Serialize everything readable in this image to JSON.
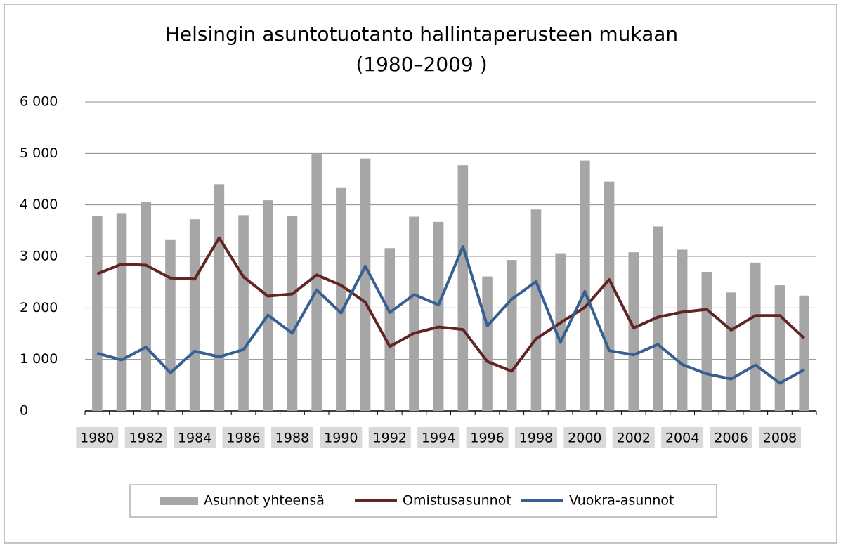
{
  "chart_data": {
    "type": "bar",
    "title": [
      "Helsingin asuntotuotanto hallintaperusteen mukaan",
      "(1980–2009 )"
    ],
    "categories": [
      "1980",
      null,
      "1982",
      null,
      "1984",
      null,
      "1986",
      null,
      "1988",
      null,
      "1990",
      null,
      "1992",
      null,
      "1994",
      null,
      "1996",
      null,
      "1998",
      null,
      "2000",
      null,
      "2002",
      null,
      "2004",
      null,
      "2006",
      null,
      "2008",
      null
    ],
    "series": [
      {
        "name": "Asunnot yhteensä",
        "type": "bar",
        "color": "#a6a6a6",
        "values": [
          3790,
          3840,
          4060,
          3330,
          3720,
          4400,
          3800,
          4090,
          3780,
          4990,
          4340,
          4900,
          3160,
          3770,
          3670,
          4770,
          2610,
          2930,
          3910,
          3060,
          4860,
          4450,
          3080,
          3580,
          3130,
          2700,
          2300,
          2880,
          2440,
          2240
        ]
      },
      {
        "name": "Omistusasunnot",
        "type": "line",
        "color": "#632523",
        "values": [
          2660,
          2850,
          2830,
          2580,
          2560,
          3360,
          2600,
          2230,
          2270,
          2640,
          2440,
          2110,
          1250,
          1510,
          1630,
          1580,
          960,
          770,
          1400,
          1710,
          2010,
          2550,
          1610,
          1820,
          1920,
          1970,
          1570,
          1850,
          1850,
          1410
        ]
      },
      {
        "name": "Vuokra-asunnot",
        "type": "line",
        "color": "#376092",
        "values": [
          1120,
          990,
          1240,
          740,
          1160,
          1050,
          1190,
          1860,
          1510,
          2350,
          1900,
          2810,
          1910,
          2260,
          2060,
          3190,
          1650,
          2170,
          2510,
          1330,
          2320,
          1170,
          1090,
          1290,
          900,
          720,
          620,
          890,
          540,
          800
        ]
      }
    ],
    "ylim": [
      0,
      6000
    ],
    "yticks": [
      0,
      {
        "value": 1000,
        "label": "1 000"
      },
      {
        "value": 2000,
        "label": "2 000"
      },
      {
        "value": 3000,
        "label": "3 000"
      },
      {
        "value": 4000,
        "label": "4 000"
      },
      {
        "value": 5000,
        "label": "5 000"
      },
      {
        "value": 6000,
        "label": "6 000"
      }
    ],
    "grid": true,
    "legend": "bottom"
  }
}
